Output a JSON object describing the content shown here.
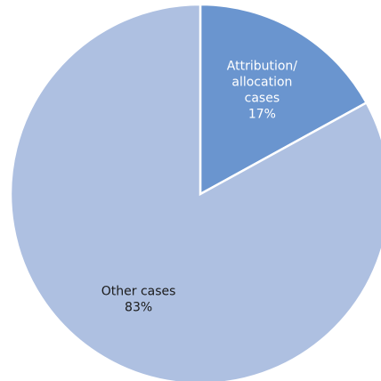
{
  "chart_data": {
    "type": "pie",
    "title": "",
    "start_angle_deg": 0,
    "direction": "clockwise",
    "slices": [
      {
        "label_lines": [
          "Attribution/",
          "allocation",
          "cases"
        ],
        "value": 17,
        "percent_label": "17%",
        "color": "#6a95cf",
        "text_color": "#ffffff"
      },
      {
        "label_lines": [
          "Other cases"
        ],
        "value": 83,
        "percent_label": "83%",
        "color": "#aec0e1",
        "text_color": "#1a1a1a"
      }
    ]
  }
}
